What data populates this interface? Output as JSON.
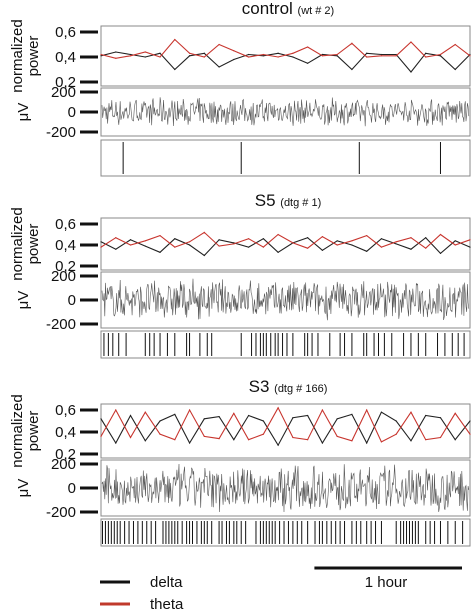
{
  "chart_data": [
    {
      "type": "line",
      "panel": "control",
      "title": "control",
      "subtitle": "(wt # 2)",
      "power_ylabel": "normalized power",
      "power_ticks": [
        "0,6",
        "0,4",
        "0,2"
      ],
      "power_ylim": [
        0.2,
        0.6
      ],
      "eeg_ylabel": "μV",
      "eeg_ticks": [
        "200",
        "0",
        "-200"
      ],
      "eeg_ylim": [
        -200,
        200
      ],
      "x_hours": [
        0,
        0.1,
        0.2,
        0.3,
        0.4,
        0.5,
        0.6,
        0.7,
        0.8,
        0.9,
        1.0,
        1.1,
        1.2,
        1.3,
        1.4,
        1.5,
        1.6,
        1.7,
        1.8,
        1.9,
        2.0,
        2.1,
        2.2,
        2.3,
        2.4,
        2.5
      ],
      "series": [
        {
          "name": "delta",
          "values": [
            0.41,
            0.44,
            0.42,
            0.4,
            0.43,
            0.3,
            0.41,
            0.43,
            0.32,
            0.38,
            0.42,
            0.41,
            0.43,
            0.4,
            0.35,
            0.42,
            0.41,
            0.3,
            0.43,
            0.42,
            0.42,
            0.28,
            0.43,
            0.41,
            0.3,
            0.42
          ]
        },
        {
          "name": "theta",
          "values": [
            0.42,
            0.39,
            0.41,
            0.44,
            0.4,
            0.54,
            0.43,
            0.4,
            0.5,
            0.45,
            0.4,
            0.42,
            0.4,
            0.43,
            0.48,
            0.41,
            0.42,
            0.51,
            0.4,
            0.41,
            0.41,
            0.52,
            0.4,
            0.42,
            0.5,
            0.41
          ]
        }
      ],
      "eeg_amplitude_uV": 150,
      "state_markers_hours": [
        0.15,
        0.95,
        1.75,
        2.3
      ]
    },
    {
      "type": "line",
      "panel": "S5",
      "title": "S5",
      "subtitle": "(dtg # 1)",
      "power_ylabel": "normalized power",
      "power_ticks": [
        "0,6",
        "0,4",
        "0,2"
      ],
      "power_ylim": [
        0.2,
        0.6
      ],
      "eeg_ylabel": "μV",
      "eeg_ticks": [
        "200",
        "0",
        "-200"
      ],
      "eeg_ylim": [
        -200,
        200
      ],
      "x_hours": [
        0,
        0.1,
        0.2,
        0.3,
        0.4,
        0.5,
        0.6,
        0.7,
        0.8,
        0.9,
        1.0,
        1.1,
        1.2,
        1.3,
        1.4,
        1.5,
        1.6,
        1.7,
        1.8,
        1.9,
        2.0,
        2.1,
        2.2,
        2.3,
        2.4,
        2.5
      ],
      "series": [
        {
          "name": "delta",
          "values": [
            0.43,
            0.36,
            0.45,
            0.39,
            0.33,
            0.46,
            0.4,
            0.3,
            0.45,
            0.42,
            0.38,
            0.46,
            0.33,
            0.42,
            0.47,
            0.35,
            0.44,
            0.4,
            0.34,
            0.46,
            0.41,
            0.36,
            0.47,
            0.32,
            0.44,
            0.38
          ]
        },
        {
          "name": "theta",
          "values": [
            0.38,
            0.47,
            0.4,
            0.44,
            0.49,
            0.38,
            0.43,
            0.52,
            0.39,
            0.41,
            0.46,
            0.38,
            0.5,
            0.42,
            0.37,
            0.48,
            0.4,
            0.44,
            0.49,
            0.38,
            0.43,
            0.47,
            0.37,
            0.5,
            0.4,
            0.45
          ]
        }
      ],
      "eeg_amplitude_uV": 180,
      "state_markers_hours": [
        0.02,
        0.05,
        0.08,
        0.12,
        0.17,
        0.3,
        0.33,
        0.36,
        0.4,
        0.45,
        0.5,
        0.58,
        0.6,
        0.67,
        0.72,
        0.75,
        0.95,
        1.02,
        1.05,
        1.08,
        1.1,
        1.12,
        1.15,
        1.18,
        1.2,
        1.23,
        1.26,
        1.3,
        1.38,
        1.4,
        1.43,
        1.47,
        1.55,
        1.62,
        1.65,
        1.7,
        1.78,
        1.8,
        1.85,
        1.88,
        1.92,
        1.97,
        2.05,
        2.1,
        2.15,
        2.2,
        2.28,
        2.33,
        2.38,
        2.42,
        2.46
      ]
    },
    {
      "type": "line",
      "panel": "S3",
      "title": "S3",
      "subtitle": "(dtg # 166)",
      "power_ylabel": "normalized power",
      "power_ticks": [
        "0,6",
        "0,4",
        "0,2"
      ],
      "power_ylim": [
        0.2,
        0.6
      ],
      "eeg_ylabel": "μV",
      "eeg_ticks": [
        "200",
        "0",
        "-200"
      ],
      "eeg_ylim": [
        -200,
        200
      ],
      "x_hours": [
        0,
        0.1,
        0.2,
        0.3,
        0.4,
        0.5,
        0.6,
        0.7,
        0.8,
        0.9,
        1.0,
        1.1,
        1.2,
        1.3,
        1.4,
        1.5,
        1.6,
        1.7,
        1.8,
        1.9,
        2.0,
        2.1,
        2.2,
        2.3,
        2.4,
        2.5
      ],
      "series": [
        {
          "name": "delta",
          "values": [
            0.52,
            0.3,
            0.55,
            0.32,
            0.5,
            0.56,
            0.3,
            0.52,
            0.54,
            0.33,
            0.55,
            0.5,
            0.28,
            0.53,
            0.55,
            0.3,
            0.52,
            0.56,
            0.3,
            0.58,
            0.5,
            0.32,
            0.55,
            0.53,
            0.33,
            0.5
          ]
        },
        {
          "name": "theta",
          "values": [
            0.36,
            0.6,
            0.35,
            0.58,
            0.38,
            0.33,
            0.6,
            0.36,
            0.34,
            0.57,
            0.33,
            0.38,
            0.62,
            0.35,
            0.33,
            0.6,
            0.36,
            0.32,
            0.6,
            0.31,
            0.38,
            0.58,
            0.33,
            0.35,
            0.57,
            0.38
          ]
        }
      ],
      "eeg_amplitude_uV": 210,
      "state_markers_hours": [
        0.01,
        0.03,
        0.05,
        0.07,
        0.09,
        0.11,
        0.13,
        0.16,
        0.19,
        0.22,
        0.25,
        0.28,
        0.31,
        0.34,
        0.37,
        0.42,
        0.44,
        0.46,
        0.48,
        0.5,
        0.52,
        0.55,
        0.58,
        0.6,
        0.62,
        0.65,
        0.68,
        0.7,
        0.72,
        0.75,
        0.8,
        0.82,
        0.85,
        0.87,
        0.9,
        0.92,
        0.95,
        0.98,
        1.05,
        1.08,
        1.1,
        1.12,
        1.14,
        1.16,
        1.18,
        1.21,
        1.24,
        1.27,
        1.3,
        1.33,
        1.36,
        1.4,
        1.45,
        1.48,
        1.5,
        1.53,
        1.56,
        1.59,
        1.62,
        1.65,
        1.7,
        1.73,
        1.76,
        1.8,
        1.83,
        1.86,
        1.9,
        2.0,
        2.03,
        2.05,
        2.07,
        2.09,
        2.11,
        2.13,
        2.15,
        2.2,
        2.23,
        2.26,
        2.3,
        2.35,
        2.4,
        2.45
      ]
    }
  ],
  "legend": [
    {
      "name": "delta",
      "color": "#111111"
    },
    {
      "name": "theta",
      "color": "#c0392b"
    }
  ],
  "scale_bar": {
    "label": "1 hour",
    "hours": 1
  },
  "x_range_hours": [
    0,
    2.5
  ],
  "colors": {
    "delta": "#222222",
    "theta": "#c8352e",
    "eeg": "#555555",
    "frame": "#888888"
  }
}
